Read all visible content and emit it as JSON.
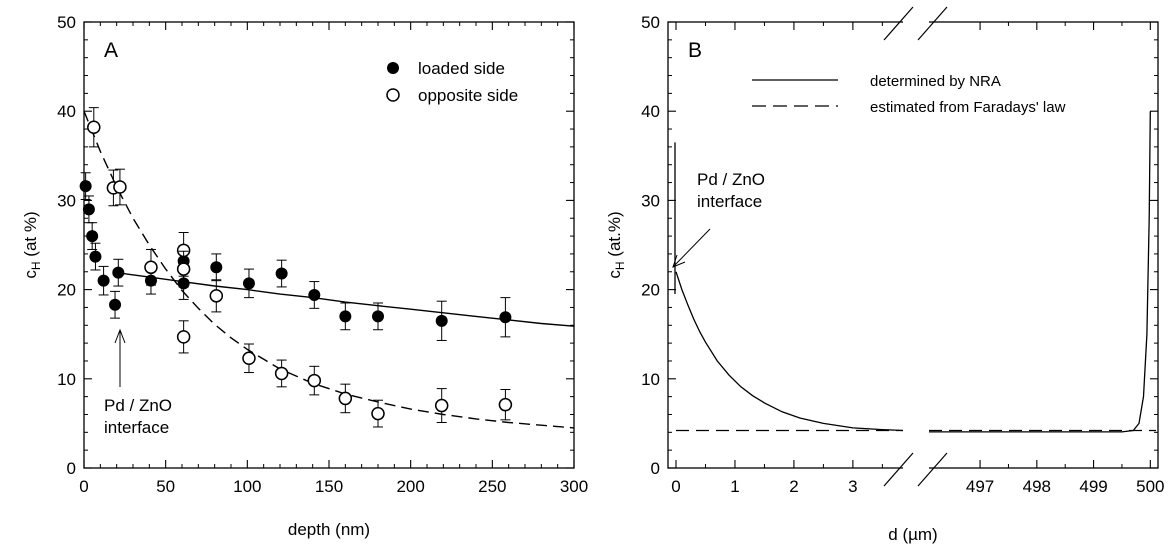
{
  "chart_data": [
    {
      "type": "scatter",
      "panel_label": "A",
      "xlabel": "depth (nm)",
      "ylabel_main": "c",
      "ylabel_sub": "H",
      "ylabel_rest": " (at %)",
      "xlim": [
        0,
        300
      ],
      "ylim": [
        0,
        50
      ],
      "x_ticks": [
        "0",
        "50",
        "100",
        "150",
        "200",
        "250",
        "300"
      ],
      "y_ticks": [
        "0",
        "10",
        "20",
        "30",
        "40",
        "50"
      ],
      "legend_position": "top-right",
      "series": [
        {
          "name": "loaded side",
          "marker": "filled-circle",
          "x": [
            1,
            3,
            5,
            7,
            12,
            19,
            21,
            41,
            61,
            61,
            81,
            101,
            121,
            141,
            160,
            180,
            219,
            258
          ],
          "y": [
            31.6,
            29,
            26,
            23.7,
            21,
            18.3,
            21.9,
            21,
            23.2,
            20.7,
            22.5,
            20.7,
            21.8,
            19.4,
            17,
            17,
            16.5,
            16.9
          ],
          "err": [
            1.5,
            1.5,
            1.5,
            1.5,
            1.6,
            1.5,
            1.5,
            1.5,
            1.7,
            1.8,
            1.5,
            1.6,
            1.5,
            1.5,
            1.5,
            1.5,
            2.2,
            2.2
          ]
        },
        {
          "name": "opposite side",
          "marker": "open-circle",
          "x": [
            6,
            18,
            22,
            41,
            61,
            61,
            61,
            81,
            101,
            121,
            141,
            160,
            180,
            219,
            258
          ],
          "y": [
            38.2,
            31.4,
            31.5,
            22.5,
            24.4,
            22.3,
            14.7,
            19.3,
            12.3,
            10.6,
            9.8,
            7.8,
            6.1,
            7.0,
            7.1
          ],
          "err": [
            2.2,
            2.0,
            2.0,
            2.0,
            2.0,
            2.0,
            1.8,
            1.8,
            1.6,
            1.5,
            1.6,
            1.6,
            1.5,
            1.9,
            1.7
          ]
        }
      ],
      "fits": [
        {
          "style": "solid",
          "x": [
            20,
            40,
            60,
            80,
            100,
            120,
            140,
            160,
            180,
            200,
            220,
            240,
            260,
            280,
            300
          ],
          "y": [
            21.9,
            21.4,
            20.9,
            20.4,
            20.0,
            19.5,
            19.1,
            18.6,
            18.2,
            17.8,
            17.4,
            17.0,
            16.6,
            16.2,
            15.9
          ]
        },
        {
          "style": "dashed",
          "x": [
            0,
            10,
            20,
            30,
            40,
            50,
            60,
            70,
            80,
            90,
            100,
            120,
            140,
            160,
            180,
            200,
            220,
            240,
            260,
            280,
            300
          ],
          "y": [
            40.0,
            35.5,
            31.5,
            28.0,
            25.0,
            22.3,
            19.9,
            17.9,
            16.1,
            14.6,
            13.3,
            11.1,
            9.5,
            8.3,
            7.4,
            6.6,
            6.0,
            5.5,
            5.1,
            4.8,
            4.5
          ]
        }
      ],
      "annotation": {
        "line1": "Pd / ZnO",
        "line2": "interface",
        "arrow_x": 21,
        "arrow_y": 17.2
      }
    },
    {
      "type": "line",
      "panel_label": "B",
      "xlabel": "d (µm)",
      "ylabel_main": "c",
      "ylabel_sub": "H",
      "ylabel_rest": " (at.%)",
      "ylim": [
        0,
        50
      ],
      "y_ticks": [
        "0",
        "10",
        "20",
        "30",
        "40",
        "50"
      ],
      "x_ticks_left": [
        "0",
        "1",
        "2",
        "3"
      ],
      "x_ticks_right": [
        "497",
        "498",
        "499",
        "500"
      ],
      "xlim_left": [
        0,
        3.85
      ],
      "xlim_right": [
        496.1,
        500.1
      ],
      "broken_axis": true,
      "legend_position": "top-right",
      "series": [
        {
          "name": "determined by NRA",
          "style": "solid",
          "left": {
            "x": [
              0,
              0.1,
              0.2,
              0.3,
              0.4,
              0.5,
              0.7,
              0.9,
              1.1,
              1.3,
              1.5,
              1.8,
              2.1,
              2.5,
              3.0,
              3.5,
              3.85
            ],
            "y": [
              22.0,
              20.0,
              18.3,
              16.7,
              15.3,
              14.1,
              12.0,
              10.4,
              9.1,
              8.1,
              7.3,
              6.3,
              5.6,
              5.0,
              4.5,
              4.3,
              4.2
            ]
          },
          "right": {
            "x": [
              496.1,
              497,
              498,
              499,
              499.5,
              499.7,
              499.8,
              499.88,
              499.94,
              499.98,
              500.0
            ],
            "y": [
              4.05,
              4.05,
              4.05,
              4.05,
              4.05,
              4.2,
              5.0,
              8.0,
              15.0,
              28.0,
              40.0
            ]
          }
        },
        {
          "name": "estimated from Faradays' law",
          "style": "dashed",
          "left": {
            "x": [
              0,
              3.85
            ],
            "y": [
              4.2,
              4.2
            ]
          },
          "right": {
            "x": [
              496.1,
              500.1
            ],
            "y": [
              4.2,
              4.2
            ]
          }
        }
      ],
      "annotation": {
        "line1": "Pd / ZnO",
        "line2": "interface",
        "arrow_x": 0.03,
        "arrow_y": 22.3
      }
    }
  ]
}
